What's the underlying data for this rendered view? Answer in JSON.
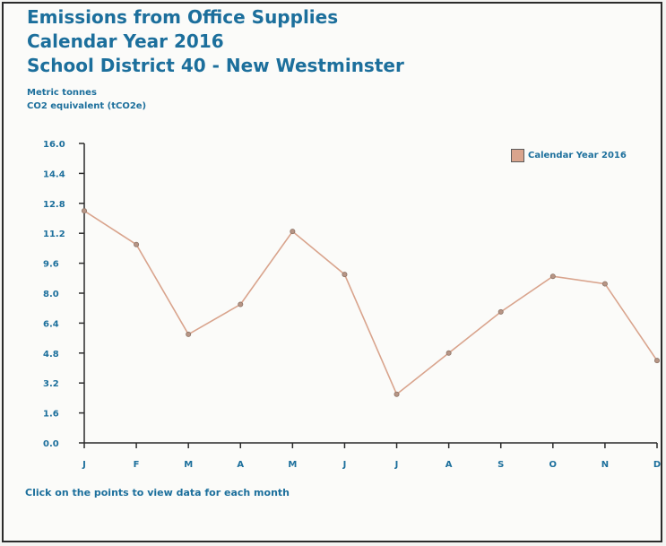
{
  "header": {
    "title_line1": "Emissions from Office Supplies",
    "title_line2": "Calendar Year 2016",
    "title_line3": "School District 40 - New Westminster"
  },
  "units": {
    "line1": "Metric tonnes",
    "line2": "CO2 equivalent (tCO2e)"
  },
  "note": "Click on the points to view data for each month",
  "colors": {
    "title": "#1c6f9c",
    "line": "#d9a48d",
    "axis": "#2b2b2b"
  },
  "chart_data": {
    "type": "line",
    "categories": [
      "J",
      "F",
      "M",
      "A",
      "M",
      "J",
      "J",
      "A",
      "S",
      "O",
      "N",
      "D"
    ],
    "series": [
      {
        "name": "Calendar Year 2016",
        "values": [
          12.4,
          10.6,
          5.8,
          7.4,
          11.3,
          9.0,
          2.6,
          4.8,
          7.0,
          8.9,
          8.5,
          4.4
        ]
      }
    ],
    "yticks": [
      "0.0",
      "1.6",
      "3.2",
      "4.8",
      "6.4",
      "8.0",
      "9.6",
      "11.2",
      "12.8",
      "14.4",
      "16.0"
    ],
    "ylim": [
      0,
      16
    ],
    "grid": false,
    "legend_position": "top-right"
  }
}
